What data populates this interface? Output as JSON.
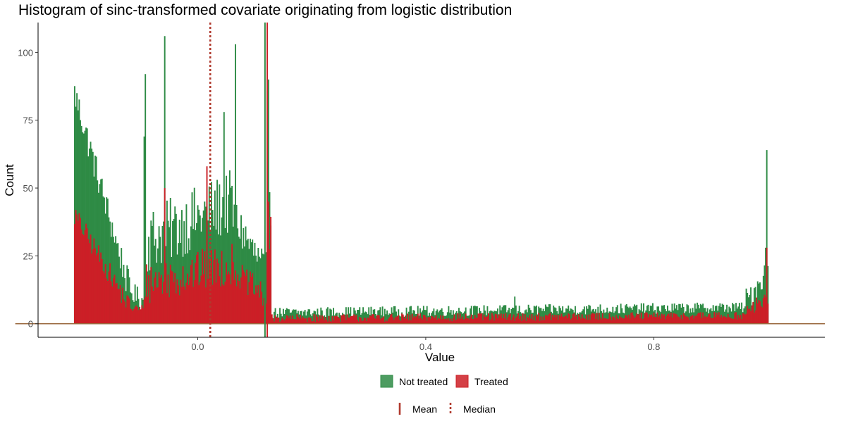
{
  "chart_data": {
    "type": "bar",
    "title": "Histogram of sinc-transformed covariate originating from logistic distribution",
    "xlabel": "Value",
    "ylabel": "Count",
    "xlim": [
      -0.28,
      1.1
    ],
    "ylim": [
      -5,
      111
    ],
    "x_ticks": [
      0.0,
      0.4,
      0.8
    ],
    "x_tick_labels": [
      "0.0",
      "0.4",
      "0.8"
    ],
    "y_ticks": [
      0,
      25,
      50,
      75,
      100
    ],
    "y_tick_labels": [
      "0",
      "25",
      "50",
      "75",
      "100"
    ],
    "grid": false,
    "legend_position": "bottom",
    "bin_width": 0.002,
    "x_range": [
      -0.217,
      1.0
    ],
    "series": [
      {
        "name": "Not treated",
        "color": "#2e8b45",
        "segments": [
          {
            "from": -0.217,
            "to": -0.12,
            "start": 85,
            "end": 12,
            "noise": 6
          },
          {
            "from": -0.12,
            "to": -0.095,
            "start": 12,
            "end": 8,
            "noise": 4
          },
          {
            "from": -0.095,
            "to": 0.06,
            "start": 30,
            "end": 45,
            "noise": 12
          },
          {
            "from": 0.06,
            "to": 0.12,
            "start": 40,
            "end": 18,
            "noise": 8
          },
          {
            "from": 0.12,
            "to": 0.128,
            "start": 50,
            "end": 50,
            "noise": 20
          },
          {
            "from": 0.128,
            "to": 0.96,
            "start": 4,
            "end": 6,
            "noise": 2
          },
          {
            "from": 0.96,
            "to": 1.0,
            "start": 8,
            "end": 20,
            "noise": 5
          }
        ],
        "spikes": [
          {
            "x": -0.216,
            "value": 94
          },
          {
            "x": -0.214,
            "value": 75
          },
          {
            "x": -0.094,
            "value": 69
          },
          {
            "x": -0.092,
            "value": 92
          },
          {
            "x": -0.058,
            "value": 106
          },
          {
            "x": 0.046,
            "value": 78
          },
          {
            "x": 0.066,
            "value": 103
          },
          {
            "x": 0.122,
            "value": 86
          },
          {
            "x": 0.124,
            "value": 90
          },
          {
            "x": 0.556,
            "value": 10
          },
          {
            "x": 0.998,
            "value": 64
          },
          {
            "x": 0.996,
            "value": 28
          }
        ]
      },
      {
        "name": "Treated",
        "color": "#cc1f26",
        "segments": [
          {
            "from": -0.217,
            "to": -0.12,
            "start": 40,
            "end": 6,
            "noise": 4
          },
          {
            "from": -0.12,
            "to": -0.095,
            "start": 6,
            "end": 5,
            "noise": 2
          },
          {
            "from": -0.095,
            "to": 0.06,
            "start": 15,
            "end": 22,
            "noise": 8
          },
          {
            "from": 0.06,
            "to": 0.12,
            "start": 20,
            "end": 9,
            "noise": 5
          },
          {
            "from": 0.12,
            "to": 0.128,
            "start": 30,
            "end": 30,
            "noise": 10
          },
          {
            "from": 0.128,
            "to": 0.96,
            "start": 2,
            "end": 3,
            "noise": 1.5
          },
          {
            "from": 0.96,
            "to": 1.0,
            "start": 4,
            "end": 10,
            "noise": 3
          }
        ],
        "spikes": [
          {
            "x": -0.216,
            "value": 40
          },
          {
            "x": -0.058,
            "value": 50
          },
          {
            "x": 0.016,
            "value": 58
          },
          {
            "x": 0.124,
            "value": 45
          },
          {
            "x": 0.998,
            "value": 28
          }
        ]
      }
    ],
    "baseline_line": {
      "from": -0.32,
      "to": 1.1,
      "color": "#9a6a40"
    },
    "reference_lines": [
      {
        "name": "Mean",
        "style": "solid",
        "x": [
          0.118,
          0.122
        ],
        "colors": [
          "#2e8b45",
          "#cc1f26"
        ]
      },
      {
        "name": "Median",
        "style": "dotted",
        "x": [
          0.022
        ],
        "colors": [
          "#b03a2e"
        ]
      }
    ],
    "legend_fill": [
      {
        "label": "Not treated",
        "color": "#2e8b45"
      },
      {
        "label": "Treated",
        "color": "#cc1f26"
      }
    ],
    "legend_lines": [
      {
        "label": "Mean",
        "style": "solid",
        "color": "#b03a2e"
      },
      {
        "label": "Median",
        "style": "dotted",
        "color": "#b03a2e"
      }
    ]
  }
}
